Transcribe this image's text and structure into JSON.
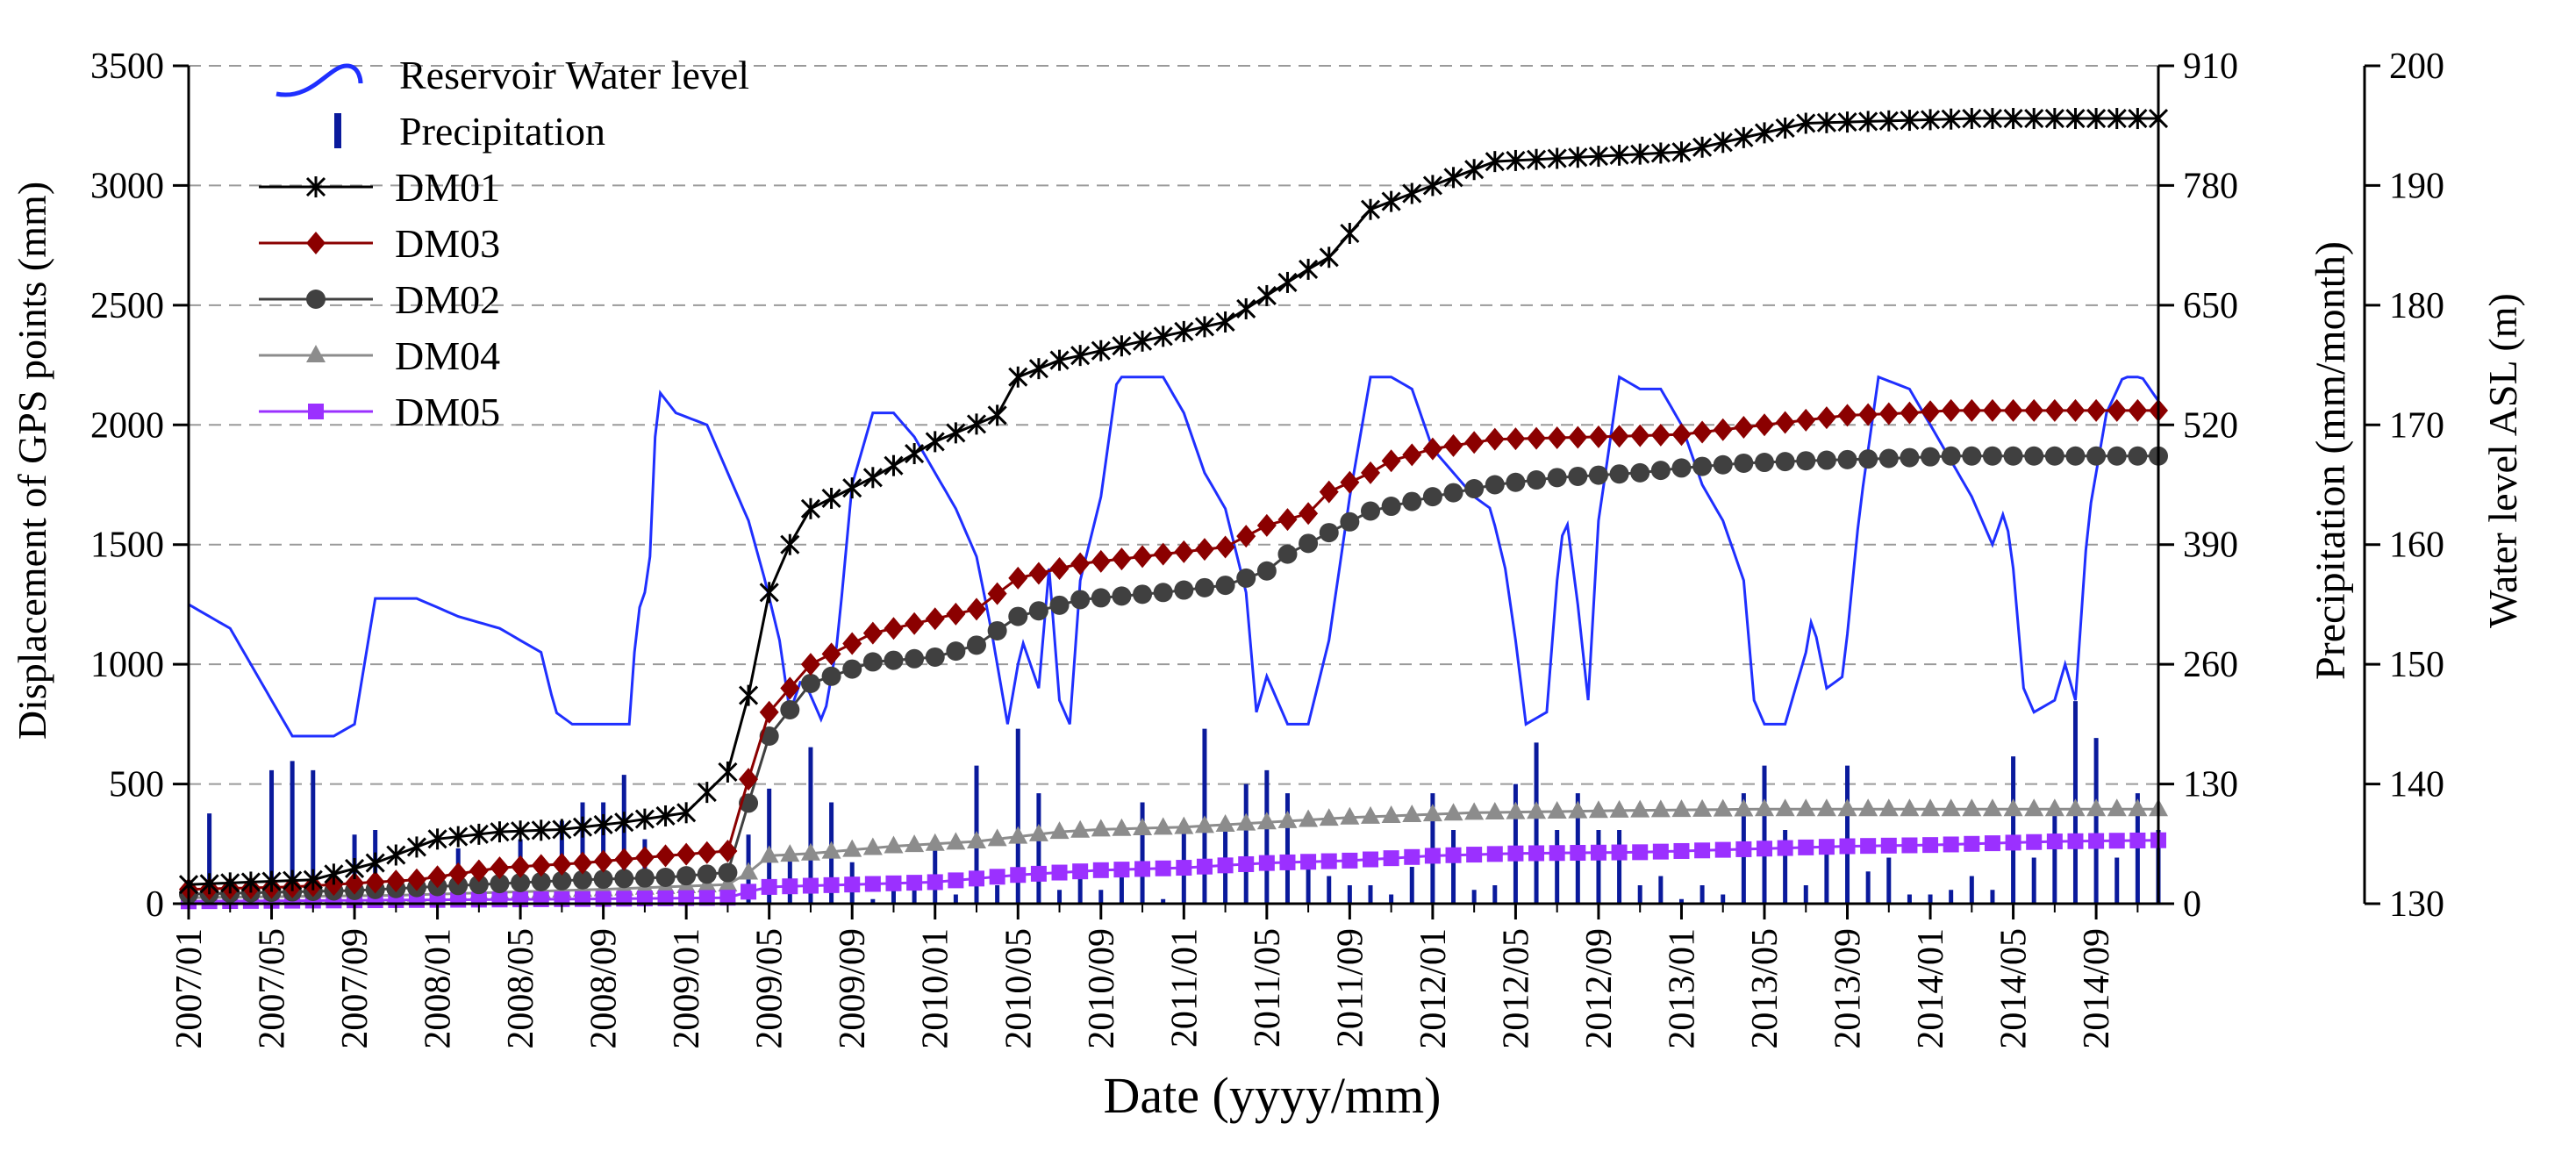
{
  "chart_data": {
    "type": "line",
    "xlabel": "Date (yyyy/mm)",
    "ylabel_left": "Displacement of GPS points (mm)",
    "ylabel_right1": "Precipitation (mm/month)",
    "ylabel_right2": "Water level ASL (m)",
    "x_range": [
      "2007/01",
      "2014/12"
    ],
    "x_ticks": [
      "2007/01",
      "2007/05",
      "2007/09",
      "2008/01",
      "2008/05",
      "2008/09",
      "2009/01",
      "2009/05",
      "2009/09",
      "2010/01",
      "2010/05",
      "2010/09",
      "2011/01",
      "2011/05",
      "2011/09",
      "2012/01",
      "2012/05",
      "2012/09",
      "2013/01",
      "2013/05",
      "2013/09",
      "2014/01",
      "2014/05",
      "2014/09"
    ],
    "ylim_left": [
      0,
      3500
    ],
    "yticks_left": [
      "0",
      "500",
      "1000",
      "1500",
      "2000",
      "2500",
      "3000",
      "3500"
    ],
    "ylim_precip": [
      0,
      910
    ],
    "yticks_precip": [
      "0",
      "130",
      "260",
      "390",
      "520",
      "650",
      "780",
      "910"
    ],
    "ylim_water": [
      130,
      200
    ],
    "yticks_water": [
      "130",
      "140",
      "150",
      "160",
      "170",
      "180",
      "190",
      "200"
    ],
    "grid": "horizontal dashed",
    "legend_position": "top-left",
    "legend": [
      "Reservoir Water level",
      "Precipitation",
      "DM01",
      "DM03",
      "DM02",
      "DM04",
      "DM05"
    ],
    "colors": {
      "water": "#1f2fff",
      "precip": "#0a1a9c",
      "DM01": "#000000",
      "DM03": "#8b0000",
      "DM02": "#404040",
      "DM04": "#8c8c8c",
      "DM05": "#9b30ff"
    },
    "series": [
      {
        "name": "DM01",
        "axis": "left",
        "marker": "star",
        "anchors": [
          [
            0,
            80
          ],
          [
            6,
            100
          ],
          [
            9,
            170
          ],
          [
            12,
            270
          ],
          [
            15,
            300
          ],
          [
            18,
            310
          ],
          [
            21,
            340
          ],
          [
            24,
            380
          ],
          [
            26,
            550
          ],
          [
            27,
            870
          ],
          [
            28,
            1300
          ],
          [
            29,
            1500
          ],
          [
            30,
            1650
          ],
          [
            33,
            1780
          ],
          [
            36,
            1930
          ],
          [
            39,
            2040
          ],
          [
            40,
            2200
          ],
          [
            42,
            2270
          ],
          [
            46,
            2350
          ],
          [
            50,
            2430
          ],
          [
            52,
            2540
          ],
          [
            54,
            2650
          ],
          [
            55,
            2700
          ],
          [
            57,
            2900
          ],
          [
            60,
            3000
          ],
          [
            63,
            3100
          ],
          [
            72,
            3140
          ],
          [
            75,
            3200
          ],
          [
            78,
            3260
          ],
          [
            82,
            3270
          ],
          [
            86,
            3280
          ],
          [
            95,
            3280
          ]
        ]
      },
      {
        "name": "DM03",
        "axis": "left",
        "marker": "diamond",
        "anchors": [
          [
            0,
            60
          ],
          [
            5,
            70
          ],
          [
            11,
            100
          ],
          [
            15,
            150
          ],
          [
            19,
            170
          ],
          [
            23,
            200
          ],
          [
            26,
            220
          ],
          [
            27,
            520
          ],
          [
            28,
            800
          ],
          [
            30,
            1000
          ],
          [
            33,
            1130
          ],
          [
            36,
            1190
          ],
          [
            38,
            1230
          ],
          [
            40,
            1360
          ],
          [
            43,
            1420
          ],
          [
            47,
            1460
          ],
          [
            50,
            1490
          ],
          [
            52,
            1580
          ],
          [
            54,
            1630
          ],
          [
            55,
            1720
          ],
          [
            57,
            1800
          ],
          [
            58,
            1850
          ],
          [
            60,
            1900
          ],
          [
            63,
            1940
          ],
          [
            68,
            1950
          ],
          [
            72,
            1960
          ],
          [
            75,
            1990
          ],
          [
            78,
            2020
          ],
          [
            80,
            2040
          ],
          [
            83,
            2050
          ],
          [
            85,
            2060
          ],
          [
            95,
            2060
          ]
        ]
      },
      {
        "name": "DM02",
        "axis": "left",
        "marker": "circle",
        "anchors": [
          [
            0,
            40
          ],
          [
            8,
            55
          ],
          [
            14,
            80
          ],
          [
            19,
            100
          ],
          [
            23,
            110
          ],
          [
            26,
            130
          ],
          [
            27,
            420
          ],
          [
            28,
            700
          ],
          [
            30,
            920
          ],
          [
            33,
            1010
          ],
          [
            36,
            1030
          ],
          [
            38,
            1080
          ],
          [
            40,
            1200
          ],
          [
            43,
            1270
          ],
          [
            47,
            1300
          ],
          [
            50,
            1330
          ],
          [
            52,
            1390
          ],
          [
            53,
            1460
          ],
          [
            55,
            1550
          ],
          [
            57,
            1640
          ],
          [
            60,
            1700
          ],
          [
            63,
            1750
          ],
          [
            66,
            1780
          ],
          [
            70,
            1800
          ],
          [
            72,
            1820
          ],
          [
            75,
            1840
          ],
          [
            78,
            1850
          ],
          [
            82,
            1860
          ],
          [
            85,
            1870
          ],
          [
            95,
            1870
          ]
        ]
      },
      {
        "name": "DM04",
        "axis": "left",
        "marker": "triangle",
        "anchors": [
          [
            0,
            25
          ],
          [
            10,
            35
          ],
          [
            20,
            60
          ],
          [
            26,
            80
          ],
          [
            27,
            130
          ],
          [
            28,
            200
          ],
          [
            30,
            210
          ],
          [
            34,
            240
          ],
          [
            38,
            260
          ],
          [
            40,
            280
          ],
          [
            42,
            300
          ],
          [
            44,
            310
          ],
          [
            48,
            320
          ],
          [
            52,
            340
          ],
          [
            56,
            360
          ],
          [
            62,
            380
          ],
          [
            70,
            390
          ],
          [
            76,
            395
          ],
          [
            82,
            395
          ],
          [
            88,
            395
          ],
          [
            95,
            395
          ]
        ]
      },
      {
        "name": "DM05",
        "axis": "left",
        "marker": "square",
        "anchors": [
          [
            0,
            10
          ],
          [
            10,
            15
          ],
          [
            20,
            20
          ],
          [
            26,
            25
          ],
          [
            27,
            50
          ],
          [
            28,
            70
          ],
          [
            32,
            80
          ],
          [
            36,
            90
          ],
          [
            40,
            120
          ],
          [
            44,
            140
          ],
          [
            48,
            150
          ],
          [
            52,
            170
          ],
          [
            56,
            180
          ],
          [
            60,
            200
          ],
          [
            64,
            210
          ],
          [
            70,
            215
          ],
          [
            76,
            230
          ],
          [
            80,
            240
          ],
          [
            84,
            245
          ],
          [
            90,
            260
          ],
          [
            95,
            265
          ]
        ]
      },
      {
        "name": "Reservoir Water level",
        "axis": "water",
        "marker": "none",
        "anchors": [
          [
            0,
            155
          ],
          [
            2,
            153
          ],
          [
            4,
            147
          ],
          [
            5,
            144
          ],
          [
            7,
            144
          ],
          [
            8,
            145
          ],
          [
            9,
            155.5
          ],
          [
            11,
            155.5
          ],
          [
            13,
            154
          ],
          [
            15,
            153
          ],
          [
            17,
            151
          ],
          [
            17.7,
            146
          ],
          [
            18.5,
            145
          ],
          [
            20,
            145
          ],
          [
            21.3,
            145
          ],
          [
            21.6,
            154
          ],
          [
            22.2,
            157
          ],
          [
            22.6,
            173
          ],
          [
            23.5,
            171
          ],
          [
            25,
            170
          ],
          [
            26,
            166
          ],
          [
            27,
            162
          ],
          [
            27.8,
            157
          ],
          [
            28.5,
            152
          ],
          [
            29,
            146
          ],
          [
            29.6,
            149
          ],
          [
            30.6,
            145
          ],
          [
            31.3,
            152
          ],
          [
            32,
            165
          ],
          [
            33,
            171
          ],
          [
            34,
            171
          ],
          [
            35,
            169
          ],
          [
            36,
            166
          ],
          [
            37,
            163
          ],
          [
            38,
            159
          ],
          [
            38.7,
            153
          ],
          [
            39.5,
            145
          ],
          [
            40.2,
            152
          ],
          [
            41,
            148
          ],
          [
            41.5,
            158
          ],
          [
            42,
            147
          ],
          [
            42.5,
            145
          ],
          [
            43,
            157
          ],
          [
            44,
            164
          ],
          [
            44.8,
            174
          ],
          [
            46,
            174
          ],
          [
            47,
            174
          ],
          [
            48,
            171
          ],
          [
            49,
            166
          ],
          [
            50,
            163
          ],
          [
            51,
            156
          ],
          [
            51.5,
            146
          ],
          [
            52,
            149
          ],
          [
            53,
            145
          ],
          [
            54,
            145
          ],
          [
            55,
            152
          ],
          [
            56,
            164
          ],
          [
            57,
            174
          ],
          [
            58,
            174
          ],
          [
            59,
            173
          ],
          [
            60,
            168
          ],
          [
            62,
            164
          ],
          [
            62.8,
            163
          ],
          [
            63.5,
            158
          ],
          [
            64,
            152
          ],
          [
            64.5,
            145
          ],
          [
            65.5,
            146
          ],
          [
            66,
            157
          ],
          [
            66.4,
            163
          ],
          [
            67,
            155
          ],
          [
            67.5,
            147
          ],
          [
            68,
            162
          ],
          [
            69,
            174
          ],
          [
            70,
            173
          ],
          [
            71,
            173
          ],
          [
            72,
            170
          ],
          [
            73,
            165
          ],
          [
            74,
            162
          ],
          [
            75,
            157
          ],
          [
            75.5,
            147
          ],
          [
            76,
            145
          ],
          [
            77,
            145
          ],
          [
            78,
            151
          ],
          [
            78.3,
            154
          ],
          [
            79,
            148
          ],
          [
            79.8,
            149
          ],
          [
            80.6,
            163
          ],
          [
            81.5,
            174
          ],
          [
            83,
            173
          ],
          [
            84,
            170
          ],
          [
            85,
            167
          ],
          [
            86,
            164
          ],
          [
            87,
            160
          ],
          [
            87.6,
            163
          ],
          [
            88,
            158
          ],
          [
            88.5,
            148
          ],
          [
            89,
            146
          ],
          [
            90,
            147
          ],
          [
            90.5,
            150
          ],
          [
            91,
            147
          ],
          [
            91.6,
            162
          ],
          [
            92.5,
            171
          ],
          [
            93.3,
            174
          ],
          [
            94.2,
            174
          ],
          [
            95,
            172
          ]
        ]
      },
      {
        "name": "Precipitation",
        "axis": "precip",
        "type": "bar",
        "values": [
          15,
          98,
          20,
          20,
          145,
          155,
          145,
          10,
          75,
          80,
          10,
          8,
          8,
          60,
          20,
          20,
          70,
          50,
          90,
          110,
          110,
          140,
          70,
          30,
          10,
          15,
          20,
          75,
          125,
          50,
          170,
          110,
          45,
          5,
          15,
          25,
          70,
          10,
          150,
          20,
          190,
          120,
          15,
          40,
          15,
          40,
          110,
          5,
          80,
          190,
          80,
          130,
          145,
          120,
          50,
          30,
          20,
          20,
          10,
          40,
          120,
          80,
          15,
          20,
          130,
          175,
          80,
          120,
          80,
          80,
          20,
          30,
          5,
          20,
          10,
          120,
          150,
          80,
          20,
          70,
          150,
          35,
          50,
          10,
          10,
          15,
          30,
          15,
          160,
          50,
          100,
          220,
          180,
          50,
          120,
          80
        ]
      }
    ]
  }
}
